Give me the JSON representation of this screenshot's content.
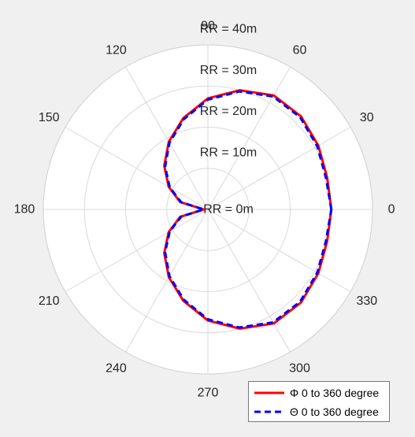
{
  "chart_data": {
    "type": "line",
    "projection": "polar",
    "angle_unit": "degree",
    "angle_ticks": [
      0,
      30,
      60,
      90,
      120,
      150,
      180,
      210,
      240,
      270,
      300,
      330
    ],
    "radius_labels": [
      "RR = 0m",
      "RR = 10m",
      "RR = 20m",
      "RR = 30m",
      "RR = 40m"
    ],
    "rlim": [
      0,
      40
    ],
    "grid": true,
    "legend_placement": "bottom-right",
    "background": "#f0f0f0",
    "plot_background": "#ffffff",
    "grid_color": "#d9d9d9",
    "series": [
      {
        "name": "Φ 0 to 360 degree",
        "color": "#ff0000",
        "style": "solid",
        "theta": [
          0,
          15,
          30,
          45,
          60,
          75,
          90,
          105,
          120,
          135,
          150,
          165,
          180,
          195,
          210,
          225,
          240,
          255,
          270,
          285,
          300,
          315,
          330,
          345,
          360
        ],
        "r": [
          30,
          30,
          31,
          32,
          32,
          30,
          27,
          23,
          19,
          15,
          11,
          7,
          1,
          7,
          11,
          15,
          19,
          23,
          27,
          30,
          32,
          32,
          31,
          30,
          30
        ]
      },
      {
        "name": "Θ 0 to 360 degree",
        "color": "#0000ff",
        "style": "dashed",
        "theta": [
          0,
          15,
          30,
          45,
          60,
          75,
          90,
          105,
          120,
          135,
          150,
          165,
          180,
          195,
          210,
          225,
          240,
          255,
          270,
          285,
          300,
          315,
          330,
          345,
          360
        ],
        "r": [
          30,
          29.7,
          30.7,
          31.7,
          31.7,
          29.7,
          26.7,
          22.7,
          18.7,
          14.7,
          10.7,
          6.7,
          1,
          6.7,
          10.7,
          14.7,
          18.7,
          22.7,
          26.7,
          29.7,
          31.7,
          31.7,
          30.7,
          29.7,
          30
        ]
      }
    ]
  }
}
